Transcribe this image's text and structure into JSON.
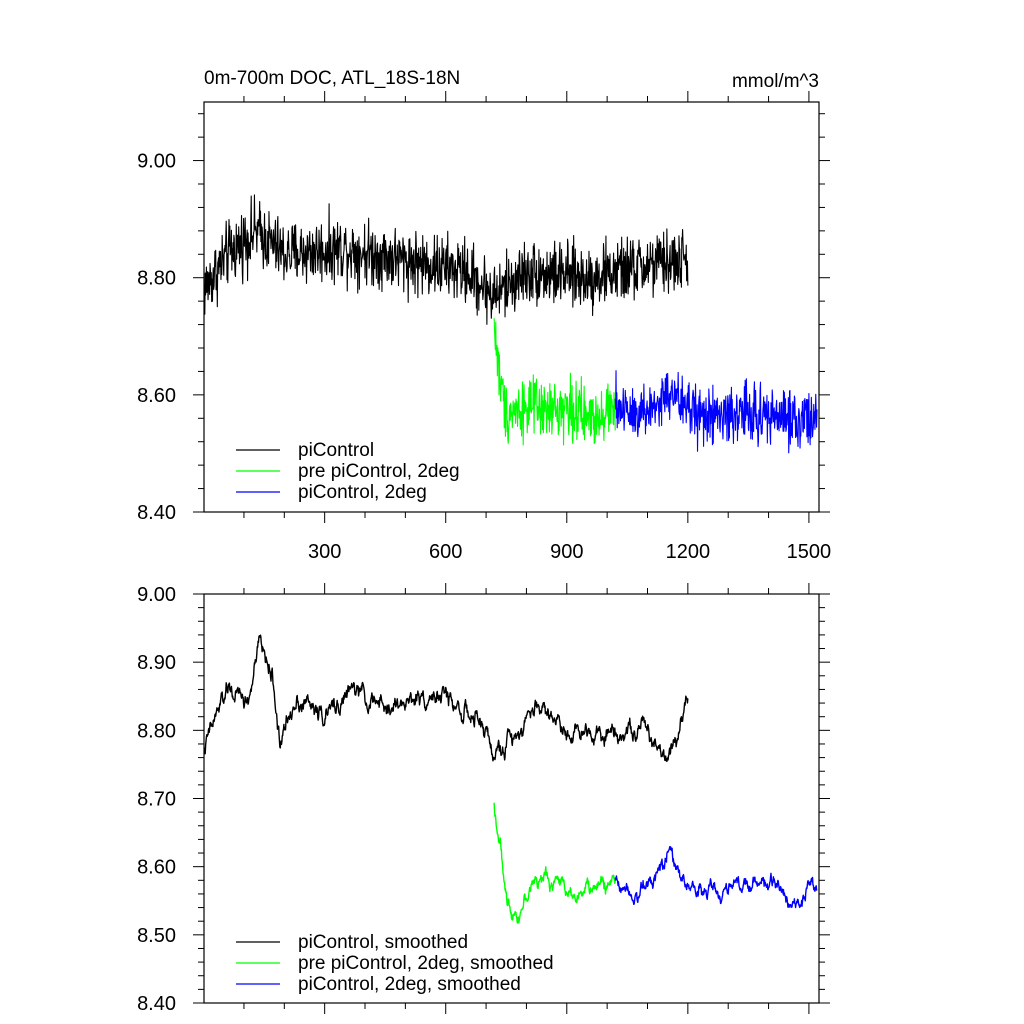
{
  "chart_data": [
    {
      "type": "line",
      "title": "0m-700m DOC, ATL_18S-18N",
      "units": "mmol/m^3",
      "xlim": [
        1,
        1525
      ],
      "ylim": [
        8.4,
        9.1
      ],
      "x_ticks": [
        300,
        600,
        900,
        1200,
        1500
      ],
      "y_ticks": [
        8.4,
        8.6,
        8.8,
        9.0
      ],
      "y_tick_labels": [
        "8.40",
        "8.60",
        "8.80",
        "9.00"
      ],
      "legend_position": "bottom-left",
      "series": [
        {
          "name": "piControl",
          "color": "#000000",
          "x_range": [
            1,
            1200
          ],
          "mean": 8.84,
          "noise_amplitude": 0.06,
          "anchors": [
            [
              1,
              8.78
            ],
            [
              60,
              8.84
            ],
            [
              130,
              8.88
            ],
            [
              200,
              8.84
            ],
            [
              350,
              8.85
            ],
            [
              500,
              8.83
            ],
            [
              650,
              8.81
            ],
            [
              720,
              8.77
            ],
            [
              800,
              8.81
            ],
            [
              950,
              8.8
            ],
            [
              1100,
              8.82
            ],
            [
              1200,
              8.83
            ]
          ]
        },
        {
          "name": "pre piControl, 2deg",
          "color": "#00ff00",
          "x_range": [
            720,
            1020
          ],
          "mean": 8.57,
          "noise_amplitude": 0.055,
          "anchors": [
            [
              720,
              8.72
            ],
            [
              735,
              8.62
            ],
            [
              750,
              8.57
            ],
            [
              800,
              8.58
            ],
            [
              850,
              8.57
            ],
            [
              900,
              8.58
            ],
            [
              950,
              8.56
            ],
            [
              1020,
              8.58
            ]
          ]
        },
        {
          "name": "piControl, 2deg",
          "color": "#0000ff",
          "x_range": [
            1020,
            1520
          ],
          "mean": 8.57,
          "noise_amplitude": 0.055,
          "anchors": [
            [
              1020,
              8.58
            ],
            [
              1100,
              8.57
            ],
            [
              1150,
              8.6
            ],
            [
              1250,
              8.56
            ],
            [
              1350,
              8.57
            ],
            [
              1450,
              8.56
            ],
            [
              1520,
              8.56
            ]
          ]
        }
      ]
    },
    {
      "type": "line",
      "xlim": [
        1,
        1525
      ],
      "ylim": [
        8.4,
        9.0
      ],
      "y_ticks": [
        8.4,
        8.5,
        8.6,
        8.7,
        8.8,
        8.9,
        9.0
      ],
      "y_tick_labels": [
        "8.40",
        "8.50",
        "8.60",
        "8.70",
        "8.80",
        "8.90",
        "9.00"
      ],
      "legend_position": "bottom-left",
      "series": [
        {
          "name": "piControl, smoothed",
          "color": "#000000",
          "x_range": [
            1,
            1200
          ],
          "mean": 8.83,
          "noise_amplitude": 0.035,
          "anchors": [
            [
              1,
              8.77
            ],
            [
              30,
              8.82
            ],
            [
              60,
              8.86
            ],
            [
              110,
              8.84
            ],
            [
              140,
              8.93
            ],
            [
              170,
              8.88
            ],
            [
              190,
              8.78
            ],
            [
              230,
              8.85
            ],
            [
              300,
              8.82
            ],
            [
              370,
              8.86
            ],
            [
              450,
              8.83
            ],
            [
              540,
              8.85
            ],
            [
              600,
              8.85
            ],
            [
              700,
              8.8
            ],
            [
              720,
              8.76
            ],
            [
              750,
              8.78
            ],
            [
              830,
              8.84
            ],
            [
              900,
              8.8
            ],
            [
              1000,
              8.8
            ],
            [
              1100,
              8.8
            ],
            [
              1150,
              8.76
            ],
            [
              1200,
              8.85
            ]
          ]
        },
        {
          "name": "pre piControl, 2deg, smoothed",
          "color": "#00ff00",
          "x_range": [
            720,
            1020
          ],
          "mean": 8.575,
          "noise_amplitude": 0.03,
          "anchors": [
            [
              720,
              8.69
            ],
            [
              735,
              8.63
            ],
            [
              750,
              8.55
            ],
            [
              780,
              8.53
            ],
            [
              820,
              8.58
            ],
            [
              870,
              8.58
            ],
            [
              930,
              8.56
            ],
            [
              970,
              8.57
            ],
            [
              1020,
              8.58
            ]
          ]
        },
        {
          "name": "piControl, 2deg, smoothed",
          "color": "#0000ff",
          "x_range": [
            1020,
            1520
          ],
          "mean": 8.57,
          "noise_amplitude": 0.03,
          "anchors": [
            [
              1020,
              8.58
            ],
            [
              1080,
              8.56
            ],
            [
              1150,
              8.62
            ],
            [
              1200,
              8.57
            ],
            [
              1280,
              8.56
            ],
            [
              1350,
              8.58
            ],
            [
              1420,
              8.57
            ],
            [
              1480,
              8.55
            ],
            [
              1520,
              8.57
            ]
          ]
        }
      ]
    }
  ]
}
